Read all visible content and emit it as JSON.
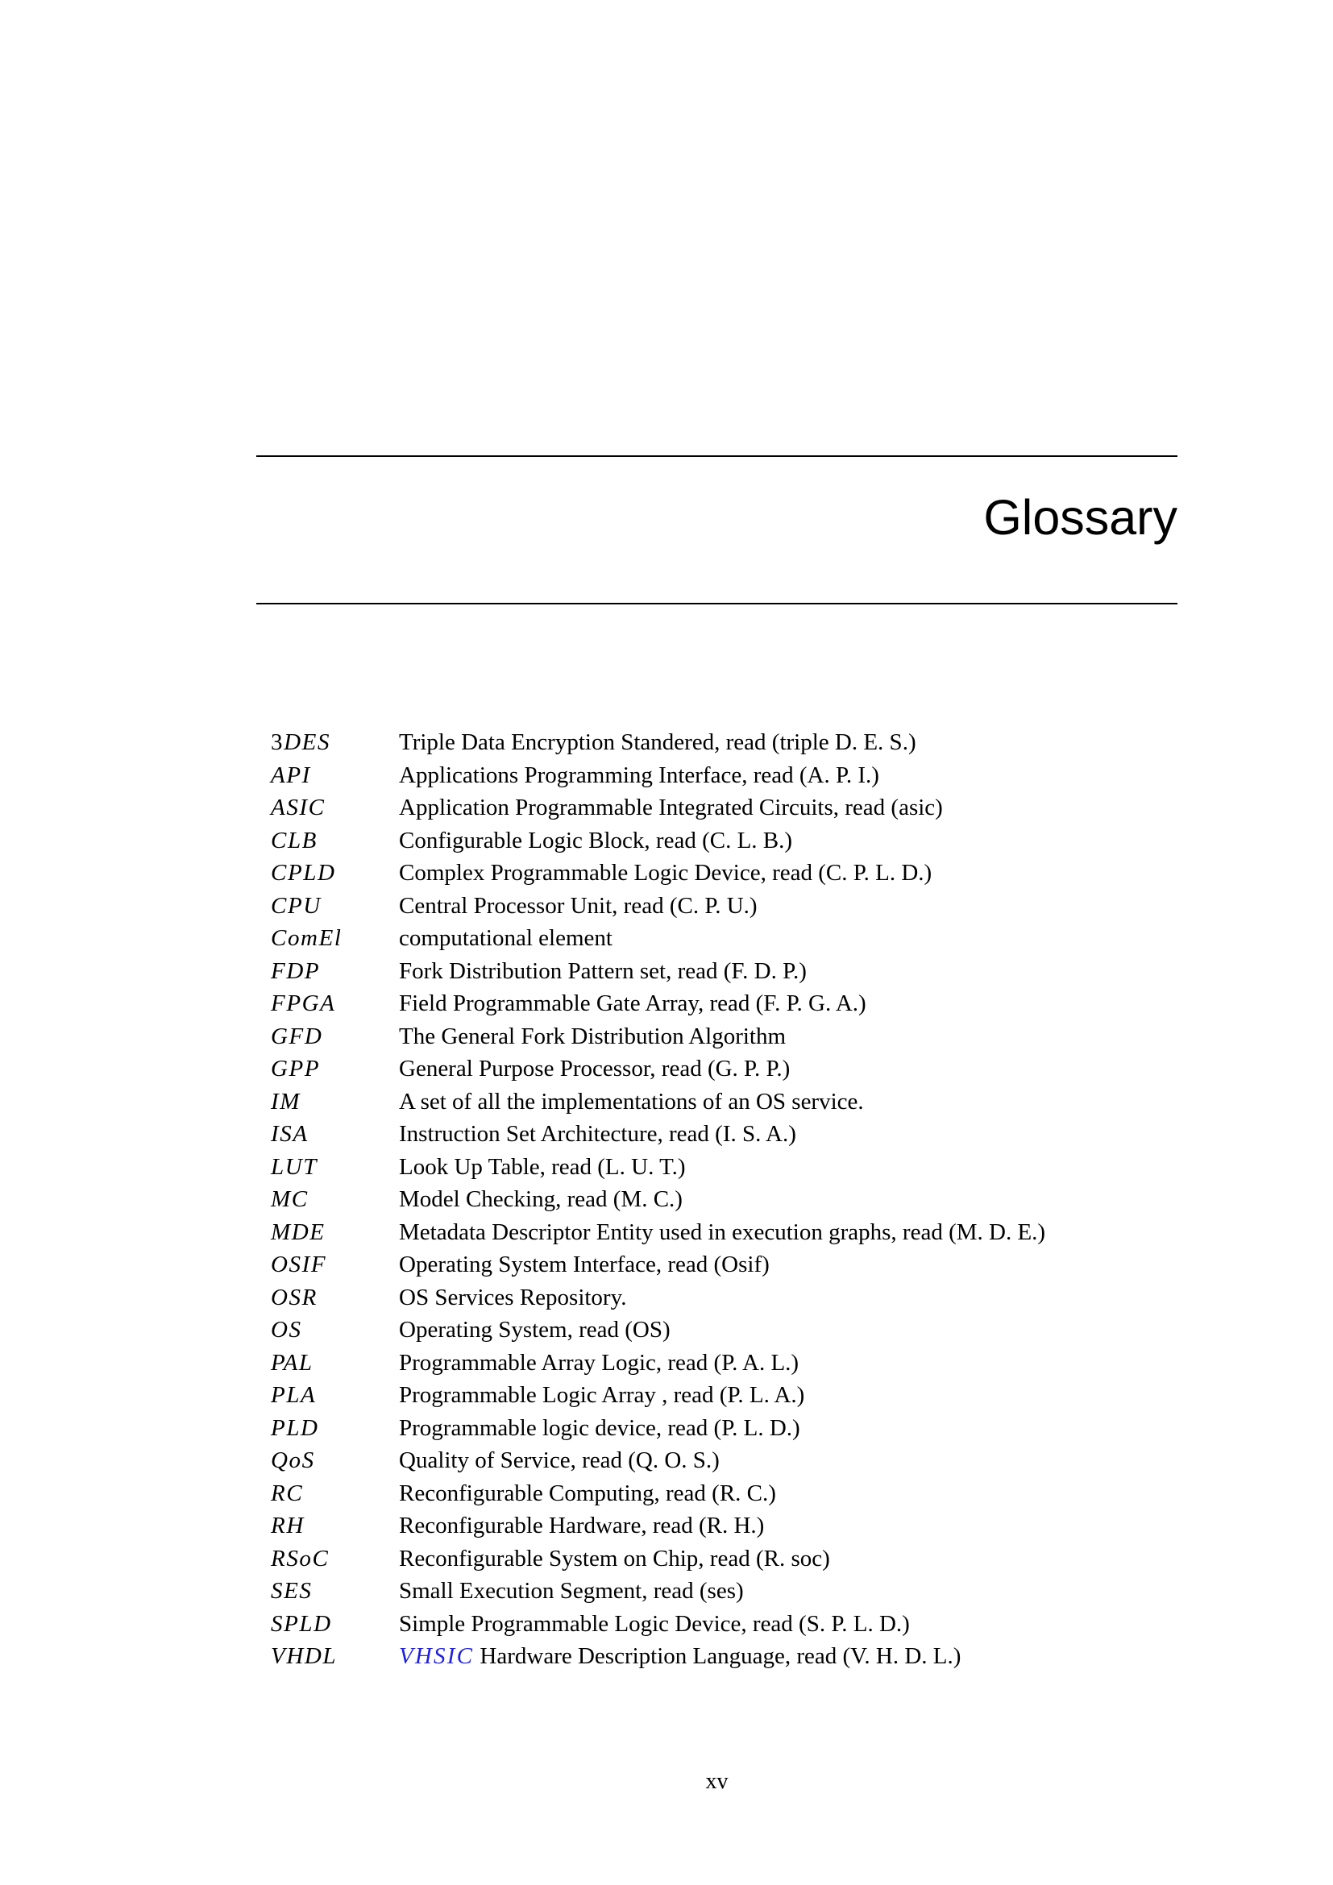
{
  "page": {
    "heading": "Glossary",
    "page_number": "xv"
  },
  "colors": {
    "text": "#000000",
    "link_blue": "#2020dd",
    "background": "#ffffff"
  },
  "glossary": {
    "entries": [
      {
        "term_pre": "3",
        "term": "DES",
        "link": "",
        "desc": "Triple Data Encryption Standered, read (triple D. E. S.)"
      },
      {
        "term_pre": "",
        "term": "API",
        "link": "",
        "desc": "Applications Programming Interface, read (A. P. I.)"
      },
      {
        "term_pre": "",
        "term": "ASIC",
        "link": "",
        "desc": "Application Programmable Integrated Circuits, read (asic)"
      },
      {
        "term_pre": "",
        "term": "CLB",
        "link": "",
        "desc": "Configurable Logic Block, read (C. L. B.)"
      },
      {
        "term_pre": "",
        "term": "CPLD",
        "link": "",
        "desc": "Complex Programmable Logic Device, read (C. P. L. D.)"
      },
      {
        "term_pre": "",
        "term": "CPU",
        "link": "",
        "desc": "Central Processor Unit, read (C. P. U.)"
      },
      {
        "term_pre": "",
        "term": "ComEl",
        "link": "",
        "desc": "computational element"
      },
      {
        "term_pre": "",
        "term": "FDP",
        "link": "",
        "desc": "Fork Distribution Pattern set, read (F. D. P.)"
      },
      {
        "term_pre": "",
        "term": "FPGA",
        "link": "",
        "desc": "Field Programmable Gate Array, read (F. P. G. A.)"
      },
      {
        "term_pre": "",
        "term": "GFD",
        "link": "",
        "desc": "The General Fork Distribution Algorithm"
      },
      {
        "term_pre": "",
        "term": "GPP",
        "link": "",
        "desc": "General Purpose Processor, read (G. P. P.)"
      },
      {
        "term_pre": "",
        "term": "IM",
        "link": "",
        "desc": "A set of all the implementations of an OS service."
      },
      {
        "term_pre": "",
        "term": "ISA",
        "link": "",
        "desc": "Instruction Set Architecture, read (I. S. A.)"
      },
      {
        "term_pre": "",
        "term": "LUT",
        "link": "",
        "desc": "Look Up Table, read (L. U. T.)"
      },
      {
        "term_pre": "",
        "term": "MC",
        "link": "",
        "desc": "Model Checking, read (M. C.)"
      },
      {
        "term_pre": "",
        "term": "MDE",
        "link": "",
        "desc": "Metadata Descriptor Entity used in execution graphs, read (M. D. E.)"
      },
      {
        "term_pre": "",
        "term": "OSIF",
        "link": "",
        "desc": "Operating System Interface, read (Osif)"
      },
      {
        "term_pre": "",
        "term": "OSR",
        "link": "",
        "desc": "OS Services Repository."
      },
      {
        "term_pre": "",
        "term": "OS",
        "link": "",
        "desc": "Operating System, read (OS)"
      },
      {
        "term_pre": "",
        "term": "PAL",
        "link": "",
        "desc": "Programmable Array Logic, read (P. A. L.)"
      },
      {
        "term_pre": "",
        "term": "PLA",
        "link": "",
        "desc": "Programmable Logic Array , read (P. L. A.)"
      },
      {
        "term_pre": "",
        "term": "PLD",
        "link": "",
        "desc": "Programmable logic device, read (P. L. D.)"
      },
      {
        "term_pre": "",
        "term": "QoS",
        "link": "",
        "desc": "Quality of Service, read (Q. O. S.)"
      },
      {
        "term_pre": "",
        "term": "RC",
        "link": "",
        "desc": "Reconfigurable Computing, read (R. C.)"
      },
      {
        "term_pre": "",
        "term": "RH",
        "link": "",
        "desc": "Reconfigurable Hardware, read (R. H.)"
      },
      {
        "term_pre": "",
        "term": "RSoC",
        "link": "",
        "desc": "Reconfigurable System on Chip, read (R. soc)"
      },
      {
        "term_pre": "",
        "term": "SES",
        "link": "",
        "desc": "Small Execution Segment, read (ses)"
      },
      {
        "term_pre": "",
        "term": "SPLD",
        "link": "",
        "desc": "Simple Programmable Logic Device, read (S. P. L. D.)"
      },
      {
        "term_pre": "",
        "term": "VHDL",
        "link": "VHSIC",
        "desc": " Hardware Description Language, read (V. H. D. L.)"
      }
    ]
  }
}
